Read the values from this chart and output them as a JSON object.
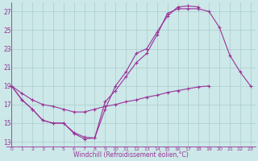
{
  "xlabel": "Windchill (Refroidissement éolien,°C)",
  "bg_color": "#cce8e8",
  "grid_color": "#aacccc",
  "line_color": "#993399",
  "xlim": [
    -0.5,
    23.5
  ],
  "ylim": [
    12.5,
    28.0
  ],
  "yticks": [
    13,
    15,
    17,
    19,
    21,
    23,
    25,
    27
  ],
  "xticks": [
    0,
    1,
    2,
    3,
    4,
    5,
    6,
    7,
    8,
    9,
    10,
    11,
    12,
    13,
    14,
    15,
    16,
    17,
    18,
    19,
    20,
    21,
    22,
    23
  ],
  "series": [
    [
      19,
      17.5,
      16.5,
      15.3,
      15.0,
      15.0,
      13.9,
      13.3,
      13.4,
      17.3,
      18.5,
      20.0,
      21.5,
      22.5,
      24.5,
      26.8,
      27.3,
      27.3,
      27.3,
      27.0,
      25.3,
      22.3,
      20.5,
      19.0
    ],
    [
      19,
      17.5,
      16.5,
      15.3,
      15.0,
      15.0,
      14.0,
      13.5,
      13.4,
      16.5,
      19.0,
      20.5,
      22.5,
      23.0,
      24.8,
      26.5,
      27.5,
      27.6,
      27.5,
      null,
      null,
      null,
      null,
      null
    ],
    [
      19,
      18.2,
      17.5,
      17.0,
      16.8,
      16.5,
      16.2,
      16.2,
      16.5,
      16.8,
      17.0,
      17.3,
      17.5,
      17.8,
      18.0,
      18.3,
      18.5,
      18.7,
      18.9,
      19.0,
      null,
      null,
      null,
      null
    ]
  ]
}
